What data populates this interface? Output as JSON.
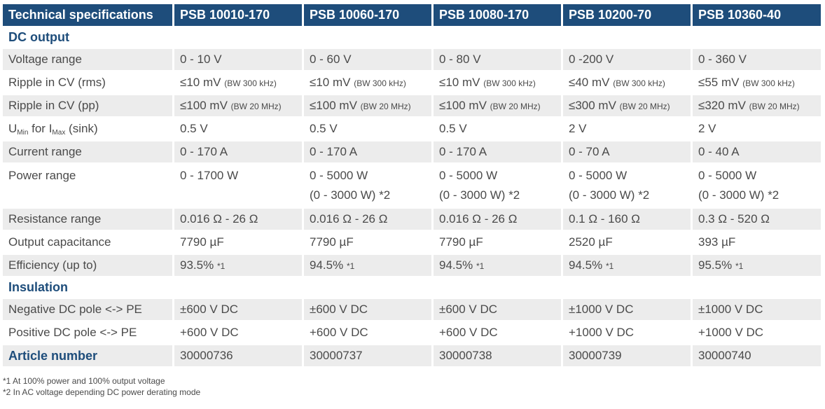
{
  "header": [
    "Technical specifications",
    "PSB 10010-170",
    "PSB 10060-170",
    "PSB 10080-170",
    "PSB 10200-70",
    "PSB 10360-40"
  ],
  "sections": {
    "dc_output": "DC output",
    "insulation": "Insulation"
  },
  "rows": {
    "voltage_range": {
      "label": "Voltage range",
      "values": [
        "0 - 10 V",
        "0 - 60 V",
        "0 - 80 V",
        "0 -200 V",
        "0 - 360 V"
      ]
    },
    "ripple_rms": {
      "label": "Ripple in CV (rms)",
      "values": [
        "≤10 mV",
        "≤10 mV",
        "≤10 mV",
        "≤40 mV",
        "≤55 mV"
      ],
      "note": "(BW 300 kHz)"
    },
    "ripple_pp": {
      "label": "Ripple in CV (pp)",
      "values": [
        "≤100 mV",
        "≤100 mV",
        "≤100 mV",
        "≤300 mV",
        "≤320 mV"
      ],
      "note": "(BW 20 MHz)"
    },
    "umin": {
      "label_u": "U",
      "label_min": "Min",
      "label_for": " for I",
      "label_max": "Max",
      "label_end": " (sink)",
      "values": [
        "0.5 V",
        "0.5 V",
        "0.5 V",
        "2 V",
        "2 V"
      ]
    },
    "current_range": {
      "label": "Current range",
      "values": [
        "0 - 170 A",
        "0 - 170 A",
        "0 - 170 A",
        "0 - 70 A",
        "0 - 40 A"
      ]
    },
    "power_range": {
      "label": "Power range",
      "values": [
        "0 - 1700 W",
        "0 - 5000 W",
        "0 - 5000 W",
        "0 - 5000 W",
        "0 - 5000 W"
      ],
      "values2": [
        "",
        "(0 - 3000 W) *2",
        "(0 - 3000 W) *2",
        "(0 - 3000 W) *2",
        "(0 - 3000 W) *2"
      ]
    },
    "resistance_range": {
      "label": "Resistance range",
      "values": [
        "0.016 Ω - 26 Ω",
        "0.016 Ω - 26 Ω",
        "0.016 Ω - 26 Ω",
        "0.1 Ω - 160 Ω",
        "0.3 Ω - 520 Ω"
      ]
    },
    "output_capacitance": {
      "label": "Output capacitance",
      "values": [
        "7790 µF",
        "7790 µF",
        "7790 µF",
        "2520 µF",
        "393 µF"
      ]
    },
    "efficiency": {
      "label": "Efficiency (up to)",
      "values": [
        "93.5%",
        "94.5%",
        "94.5%",
        "94.5%",
        "95.5%"
      ],
      "note": "*1"
    },
    "neg_pole": {
      "label": "Negative DC pole <-> PE",
      "values": [
        "±600 V DC",
        "±600 V DC",
        "±600 V DC",
        "±1000 V DC",
        "±1000 V DC"
      ]
    },
    "pos_pole": {
      "label": "Positive DC pole <-> PE",
      "values": [
        "+600 V DC",
        "+600 V DC",
        "+600 V DC",
        "+1000 V DC",
        "+1000 V DC"
      ]
    },
    "article": {
      "label": "Article number",
      "values": [
        "30000736",
        "30000737",
        "30000738",
        "30000739",
        "30000740"
      ]
    }
  },
  "footnotes": [
    "*1 At 100% power and 100% output voltage",
    "*2 In AC voltage depending DC power derating mode"
  ]
}
